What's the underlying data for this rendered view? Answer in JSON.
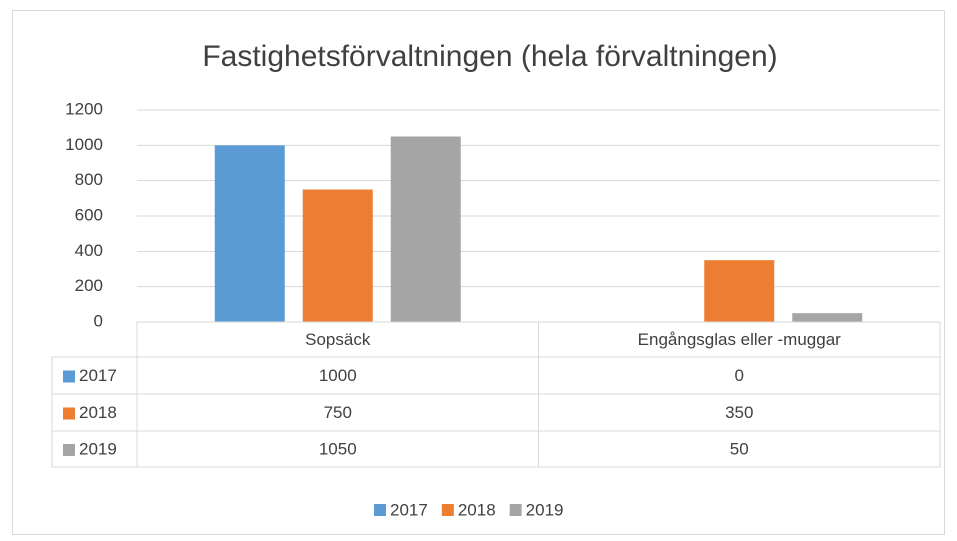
{
  "chart_data": {
    "type": "bar",
    "title": "Fastighetsförvaltningen (hela förvaltningen)",
    "categories": [
      "Sopsäck",
      "Engångsglas eller -muggar"
    ],
    "series": [
      {
        "name": "2017",
        "color": "#5b9bd5",
        "values": [
          1000,
          0
        ]
      },
      {
        "name": "2018",
        "color": "#ed7d31",
        "values": [
          750,
          350
        ]
      },
      {
        "name": "2019",
        "color": "#a5a5a5",
        "values": [
          1050,
          50
        ]
      }
    ],
    "ylim": [
      0,
      1200
    ],
    "yticks": [
      0,
      200,
      400,
      600,
      800,
      1000,
      1200
    ],
    "grid": true,
    "data_table": true,
    "legend": "bottom"
  }
}
